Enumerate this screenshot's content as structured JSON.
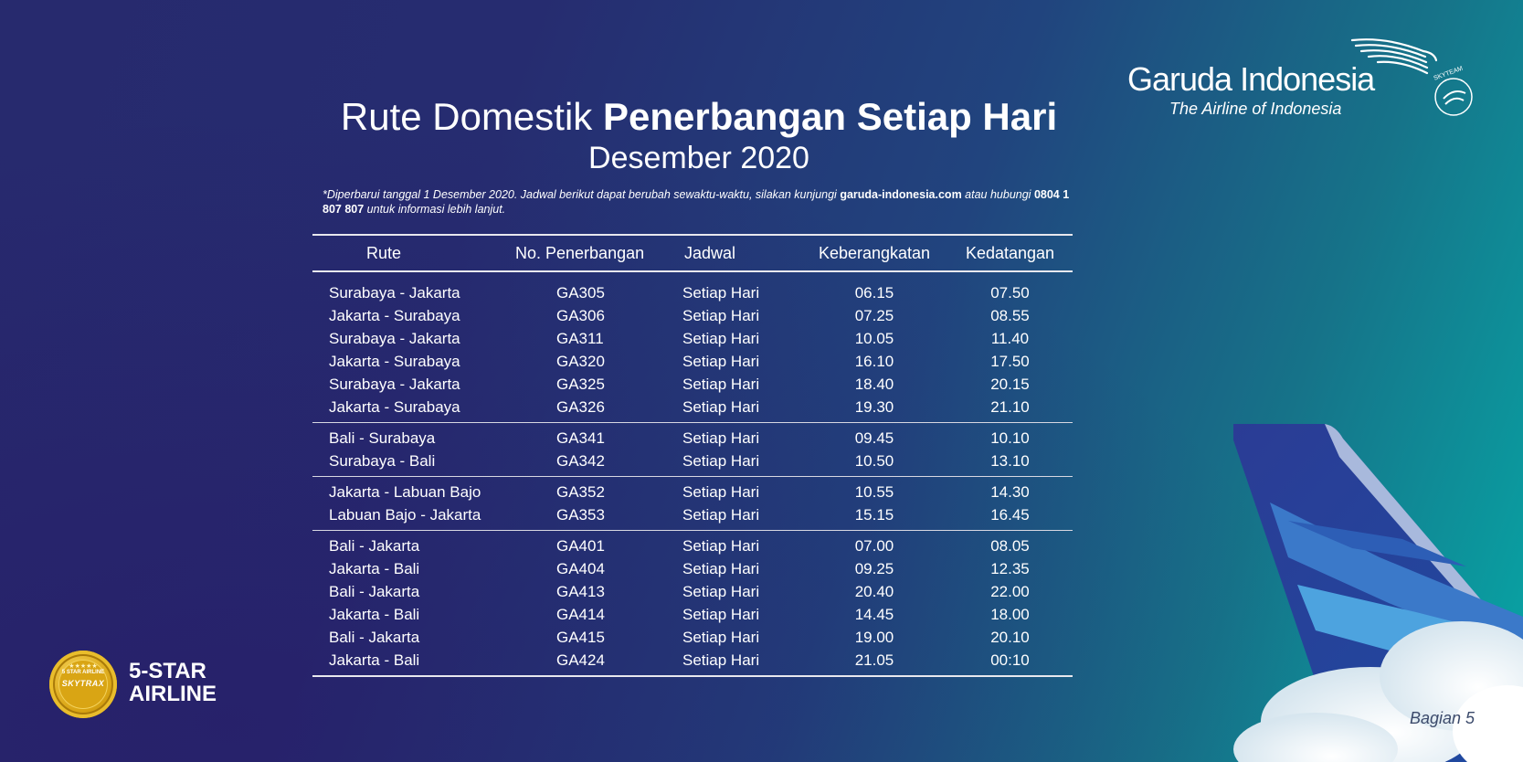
{
  "brand": {
    "name": "Garuda Indonesia",
    "tagline": "The Airline of Indonesia",
    "alliance": "SKYTEAM"
  },
  "title": {
    "part1": "Rute Domestik",
    "part2": "Penerbangan Setiap Hari",
    "subtitle": "Desember 2020"
  },
  "note": {
    "text1": "*Diperbarui tanggal 1 Desember 2020. Jadwal berikut dapat berubah sewaktu-waktu, silakan kunjungi",
    "website": "garuda-indonesia.com",
    "text2": "atau hubungi",
    "phone": "0804 1 807 807",
    "text3": "untuk informasi lebih lanjut."
  },
  "table": {
    "headers": [
      "Rute",
      "No. Penerbangan",
      "Jadwal",
      "Keberangkatan",
      "Kedatangan"
    ],
    "groups": [
      [
        [
          "Surabaya - Jakarta",
          "GA305",
          "Setiap Hari",
          "06.15",
          "07.50"
        ],
        [
          "Jakarta - Surabaya",
          "GA306",
          "Setiap Hari",
          "07.25",
          "08.55"
        ],
        [
          "Surabaya - Jakarta",
          "GA311",
          "Setiap Hari",
          "10.05",
          "11.40"
        ],
        [
          "Jakarta - Surabaya",
          "GA320",
          "Setiap Hari",
          "16.10",
          "17.50"
        ],
        [
          "Surabaya - Jakarta",
          "GA325",
          "Setiap Hari",
          "18.40",
          "20.15"
        ],
        [
          "Jakarta - Surabaya",
          "GA326",
          "Setiap Hari",
          "19.30",
          "21.10"
        ]
      ],
      [
        [
          "Bali - Surabaya",
          "GA341",
          "Setiap Hari",
          "09.45",
          "10.10"
        ],
        [
          "Surabaya - Bali",
          "GA342",
          "Setiap Hari",
          "10.50",
          "13.10"
        ]
      ],
      [
        [
          "Jakarta - Labuan Bajo",
          "GA352",
          "Setiap Hari",
          "10.55",
          "14.30"
        ],
        [
          "Labuan Bajo - Jakarta",
          "GA353",
          "Setiap Hari",
          "15.15",
          "16.45"
        ]
      ],
      [
        [
          "Bali - Jakarta",
          "GA401",
          "Setiap Hari",
          "07.00",
          "08.05"
        ],
        [
          "Jakarta - Bali",
          "GA404",
          "Setiap Hari",
          "09.25",
          "12.35"
        ],
        [
          "Bali - Jakarta",
          "GA413",
          "Setiap Hari",
          "20.40",
          "22.00"
        ],
        [
          "Jakarta - Bali",
          "GA414",
          "Setiap Hari",
          "14.45",
          "18.00"
        ],
        [
          "Bali - Jakarta",
          "GA415",
          "Setiap Hari",
          "19.00",
          "20.10"
        ],
        [
          "Jakarta - Bali",
          "GA424",
          "Setiap Hari",
          "21.05",
          "00:10"
        ]
      ]
    ]
  },
  "badge": {
    "ring_text": "5 STAR AIRLINE",
    "brand": "SKYTRAX",
    "label_line1": "5-STAR",
    "label_line2": "AIRLINE"
  },
  "footer": {
    "page": "Bagian 5"
  },
  "colors": {
    "background_start": "#272a6e",
    "background_end": "#07a7a6",
    "gold": "#d9a514"
  }
}
